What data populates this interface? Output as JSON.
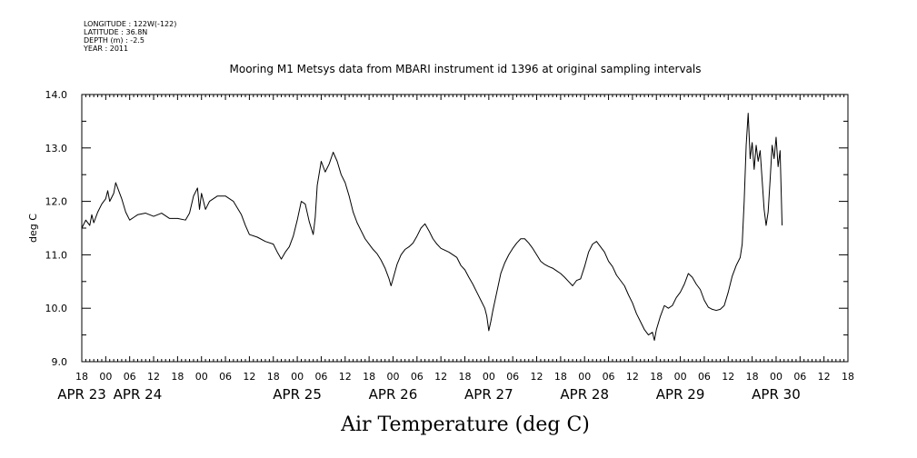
{
  "header": {
    "longitude": "LONGITUDE : 122W(-122)",
    "latitude": "LATITUDE : 36.8N",
    "depth": "DEPTH (m) : -2.5",
    "year": "YEAR : 2011"
  },
  "chart_data": {
    "type": "line",
    "title": "Mooring M1 Metsys data from MBARI instrument id 1396 at original sampling intervals",
    "xlabel": "Air Temperature (deg C)",
    "ylabel": "deg C",
    "ylim": [
      9.0,
      14.0
    ],
    "yticks": [
      "9.0",
      "10.0",
      "11.0",
      "12.0",
      "13.0",
      "14.0"
    ],
    "x_units": "hours since APR 23 00:00",
    "xlim": [
      -6,
      186
    ],
    "hour_ticks": [
      {
        "h": -6,
        "label": "18"
      },
      {
        "h": 0,
        "label": "00"
      },
      {
        "h": 6,
        "label": "06"
      },
      {
        "h": 12,
        "label": "12"
      },
      {
        "h": 18,
        "label": "18"
      },
      {
        "h": 24,
        "label": "00"
      },
      {
        "h": 30,
        "label": "06"
      },
      {
        "h": 36,
        "label": "12"
      },
      {
        "h": 42,
        "label": "18"
      },
      {
        "h": 48,
        "label": "00"
      },
      {
        "h": 54,
        "label": "06"
      },
      {
        "h": 60,
        "label": "12"
      },
      {
        "h": 66,
        "label": "18"
      },
      {
        "h": 72,
        "label": "00"
      },
      {
        "h": 78,
        "label": "06"
      },
      {
        "h": 84,
        "label": "12"
      },
      {
        "h": 90,
        "label": "18"
      },
      {
        "h": 96,
        "label": "00"
      },
      {
        "h": 102,
        "label": "06"
      },
      {
        "h": 108,
        "label": "12"
      },
      {
        "h": 114,
        "label": "18"
      },
      {
        "h": 120,
        "label": "00"
      },
      {
        "h": 126,
        "label": "06"
      },
      {
        "h": 132,
        "label": "12"
      },
      {
        "h": 138,
        "label": "18"
      },
      {
        "h": 144,
        "label": "00"
      },
      {
        "h": 150,
        "label": "06"
      },
      {
        "h": 156,
        "label": "12"
      },
      {
        "h": 162,
        "label": "18"
      },
      {
        "h": 168,
        "label": "00"
      },
      {
        "h": 174,
        "label": "06"
      },
      {
        "h": 180,
        "label": "12"
      },
      {
        "h": 186,
        "label": "18"
      }
    ],
    "day_labels": [
      {
        "h": -6,
        "label": "APR 23"
      },
      {
        "h": 8,
        "label": "APR 24"
      },
      {
        "h": 48,
        "label": "APR 25"
      },
      {
        "h": 72,
        "label": "APR 26"
      },
      {
        "h": 96,
        "label": "APR 27"
      },
      {
        "h": 120,
        "label": "APR 28"
      },
      {
        "h": 144,
        "label": "APR 29"
      },
      {
        "h": 168,
        "label": "APR 30"
      }
    ],
    "series": [
      {
        "color": "#000000",
        "points": [
          [
            -6.0,
            11.5
          ],
          [
            -5.0,
            11.65
          ],
          [
            -4.0,
            11.55
          ],
          [
            -3.5,
            11.75
          ],
          [
            -3.0,
            11.6
          ],
          [
            -2.0,
            11.8
          ],
          [
            -1.0,
            11.95
          ],
          [
            0.0,
            12.05
          ],
          [
            0.5,
            12.2
          ],
          [
            1.0,
            12.0
          ],
          [
            2.0,
            12.15
          ],
          [
            2.5,
            12.35
          ],
          [
            3.0,
            12.25
          ],
          [
            4.0,
            12.05
          ],
          [
            5.0,
            11.8
          ],
          [
            6.0,
            11.65
          ],
          [
            7.0,
            11.7
          ],
          [
            8.0,
            11.75
          ],
          [
            10.0,
            11.78
          ],
          [
            12.0,
            11.72
          ],
          [
            14.0,
            11.78
          ],
          [
            16.0,
            11.68
          ],
          [
            18.0,
            11.68
          ],
          [
            20.0,
            11.65
          ],
          [
            21.0,
            11.78
          ],
          [
            22.0,
            12.1
          ],
          [
            23.0,
            12.25
          ],
          [
            23.5,
            11.85
          ],
          [
            24.0,
            12.15
          ],
          [
            25.0,
            11.85
          ],
          [
            26.0,
            12.0
          ],
          [
            28.0,
            12.1
          ],
          [
            30.0,
            12.1
          ],
          [
            32.0,
            12.0
          ],
          [
            34.0,
            11.75
          ],
          [
            35.0,
            11.55
          ],
          [
            36.0,
            11.38
          ],
          [
            38.0,
            11.33
          ],
          [
            40.0,
            11.25
          ],
          [
            42.0,
            11.2
          ],
          [
            43.0,
            11.05
          ],
          [
            44.0,
            10.92
          ],
          [
            45.0,
            11.05
          ],
          [
            46.0,
            11.15
          ],
          [
            47.0,
            11.35
          ],
          [
            48.0,
            11.65
          ],
          [
            49.0,
            12.0
          ],
          [
            50.0,
            11.95
          ],
          [
            51.0,
            11.62
          ],
          [
            52.0,
            11.38
          ],
          [
            52.5,
            11.7
          ],
          [
            53.0,
            12.3
          ],
          [
            54.0,
            12.75
          ],
          [
            55.0,
            12.55
          ],
          [
            56.0,
            12.7
          ],
          [
            57.0,
            12.92
          ],
          [
            58.0,
            12.75
          ],
          [
            59.0,
            12.5
          ],
          [
            60.0,
            12.35
          ],
          [
            61.0,
            12.1
          ],
          [
            62.0,
            11.8
          ],
          [
            63.0,
            11.6
          ],
          [
            64.0,
            11.45
          ],
          [
            65.0,
            11.3
          ],
          [
            66.0,
            11.2
          ],
          [
            67.0,
            11.1
          ],
          [
            68.0,
            11.02
          ],
          [
            69.0,
            10.9
          ],
          [
            70.0,
            10.75
          ],
          [
            71.0,
            10.55
          ],
          [
            71.5,
            10.42
          ],
          [
            72.0,
            10.55
          ],
          [
            73.0,
            10.82
          ],
          [
            74.0,
            11.0
          ],
          [
            75.0,
            11.1
          ],
          [
            76.0,
            11.15
          ],
          [
            77.0,
            11.22
          ],
          [
            78.0,
            11.35
          ],
          [
            79.0,
            11.5
          ],
          [
            80.0,
            11.58
          ],
          [
            81.0,
            11.45
          ],
          [
            82.0,
            11.3
          ],
          [
            83.0,
            11.2
          ],
          [
            84.0,
            11.12
          ],
          [
            86.0,
            11.05
          ],
          [
            88.0,
            10.95
          ],
          [
            89.0,
            10.8
          ],
          [
            90.0,
            10.72
          ],
          [
            91.0,
            10.58
          ],
          [
            92.0,
            10.45
          ],
          [
            93.0,
            10.3
          ],
          [
            94.0,
            10.15
          ],
          [
            95.0,
            10.0
          ],
          [
            95.5,
            9.85
          ],
          [
            96.0,
            9.58
          ],
          [
            96.5,
            9.75
          ],
          [
            97.0,
            9.95
          ],
          [
            98.0,
            10.3
          ],
          [
            99.0,
            10.65
          ],
          [
            100.0,
            10.85
          ],
          [
            101.0,
            11.0
          ],
          [
            102.0,
            11.12
          ],
          [
            103.0,
            11.22
          ],
          [
            104.0,
            11.3
          ],
          [
            105.0,
            11.3
          ],
          [
            106.0,
            11.22
          ],
          [
            107.0,
            11.12
          ],
          [
            108.0,
            11.0
          ],
          [
            109.0,
            10.88
          ],
          [
            110.0,
            10.82
          ],
          [
            111.0,
            10.78
          ],
          [
            112.0,
            10.75
          ],
          [
            113.0,
            10.7
          ],
          [
            114.0,
            10.65
          ],
          [
            115.0,
            10.58
          ],
          [
            116.0,
            10.5
          ],
          [
            117.0,
            10.42
          ],
          [
            118.0,
            10.52
          ],
          [
            119.0,
            10.55
          ],
          [
            120.0,
            10.78
          ],
          [
            121.0,
            11.05
          ],
          [
            122.0,
            11.2
          ],
          [
            123.0,
            11.25
          ],
          [
            124.0,
            11.15
          ],
          [
            125.0,
            11.05
          ],
          [
            126.0,
            10.88
          ],
          [
            127.0,
            10.78
          ],
          [
            128.0,
            10.62
          ],
          [
            129.0,
            10.52
          ],
          [
            130.0,
            10.42
          ],
          [
            131.0,
            10.25
          ],
          [
            132.0,
            10.1
          ],
          [
            133.0,
            9.9
          ],
          [
            134.0,
            9.75
          ],
          [
            135.0,
            9.6
          ],
          [
            136.0,
            9.5
          ],
          [
            137.0,
            9.55
          ],
          [
            137.5,
            9.4
          ],
          [
            138.0,
            9.6
          ],
          [
            139.0,
            9.85
          ],
          [
            140.0,
            10.05
          ],
          [
            141.0,
            10.0
          ],
          [
            142.0,
            10.05
          ],
          [
            143.0,
            10.2
          ],
          [
            144.0,
            10.3
          ],
          [
            145.0,
            10.45
          ],
          [
            146.0,
            10.65
          ],
          [
            147.0,
            10.58
          ],
          [
            148.0,
            10.45
          ],
          [
            149.0,
            10.35
          ],
          [
            150.0,
            10.15
          ],
          [
            151.0,
            10.02
          ],
          [
            152.0,
            9.98
          ],
          [
            153.0,
            9.96
          ],
          [
            154.0,
            9.98
          ],
          [
            155.0,
            10.05
          ],
          [
            156.0,
            10.3
          ],
          [
            157.0,
            10.6
          ],
          [
            158.0,
            10.8
          ],
          [
            159.0,
            10.95
          ],
          [
            159.5,
            11.2
          ],
          [
            160.0,
            12.0
          ],
          [
            160.5,
            13.05
          ],
          [
            161.0,
            13.65
          ],
          [
            161.5,
            12.8
          ],
          [
            162.0,
            13.1
          ],
          [
            162.5,
            12.6
          ],
          [
            163.0,
            13.05
          ],
          [
            163.5,
            12.75
          ],
          [
            164.0,
            12.95
          ],
          [
            164.5,
            12.4
          ],
          [
            165.0,
            11.85
          ],
          [
            165.5,
            11.55
          ],
          [
            166.0,
            11.8
          ],
          [
            166.5,
            12.4
          ],
          [
            167.0,
            13.05
          ],
          [
            167.5,
            12.8
          ],
          [
            168.0,
            13.2
          ],
          [
            168.5,
            12.65
          ],
          [
            169.0,
            12.95
          ],
          [
            169.5,
            11.55
          ]
        ]
      }
    ]
  }
}
